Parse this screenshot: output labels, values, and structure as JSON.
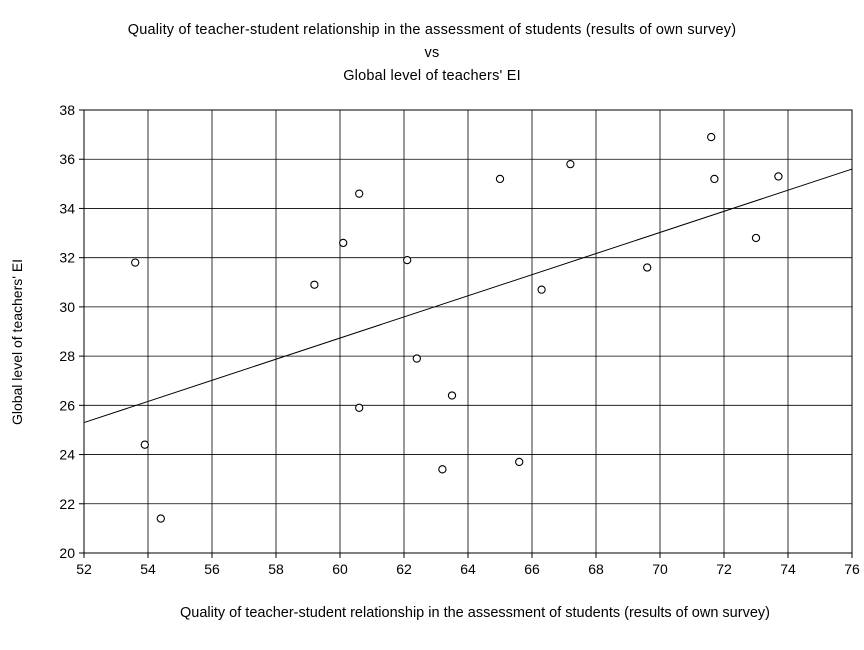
{
  "chart_data": {
    "type": "scatter",
    "title_lines": [
      "Quality of teacher-student relationship in the assessment of students (results of own survey)",
      "vs",
      "Global level of teachers' EI"
    ],
    "xlabel": "Quality of teacher-student relationship in the assessment of students (results of own survey)",
    "ylabel": "Global level of teachers' EI",
    "xlim": [
      52,
      76
    ],
    "ylim": [
      20,
      38
    ],
    "x_ticks": [
      52,
      54,
      56,
      58,
      60,
      62,
      64,
      66,
      68,
      70,
      72,
      74,
      76
    ],
    "y_ticks": [
      20,
      22,
      24,
      26,
      28,
      30,
      32,
      34,
      36,
      38
    ],
    "grid": true,
    "points": [
      {
        "x": 53.6,
        "y": 31.8
      },
      {
        "x": 53.9,
        "y": 24.4
      },
      {
        "x": 54.4,
        "y": 21.4
      },
      {
        "x": 59.2,
        "y": 30.9
      },
      {
        "x": 60.1,
        "y": 32.6
      },
      {
        "x": 60.6,
        "y": 34.6
      },
      {
        "x": 60.6,
        "y": 25.9
      },
      {
        "x": 62.1,
        "y": 31.9
      },
      {
        "x": 62.4,
        "y": 27.9
      },
      {
        "x": 63.2,
        "y": 23.4
      },
      {
        "x": 63.5,
        "y": 26.4
      },
      {
        "x": 65.0,
        "y": 35.2
      },
      {
        "x": 65.6,
        "y": 23.7
      },
      {
        "x": 66.3,
        "y": 30.7
      },
      {
        "x": 67.2,
        "y": 35.8
      },
      {
        "x": 69.6,
        "y": 31.6
      },
      {
        "x": 71.6,
        "y": 36.9
      },
      {
        "x": 71.7,
        "y": 35.2
      },
      {
        "x": 73.0,
        "y": 32.8
      },
      {
        "x": 73.7,
        "y": 35.3
      }
    ],
    "fit_line": {
      "x": [
        52,
        76
      ],
      "y": [
        25.3,
        35.6
      ]
    }
  }
}
